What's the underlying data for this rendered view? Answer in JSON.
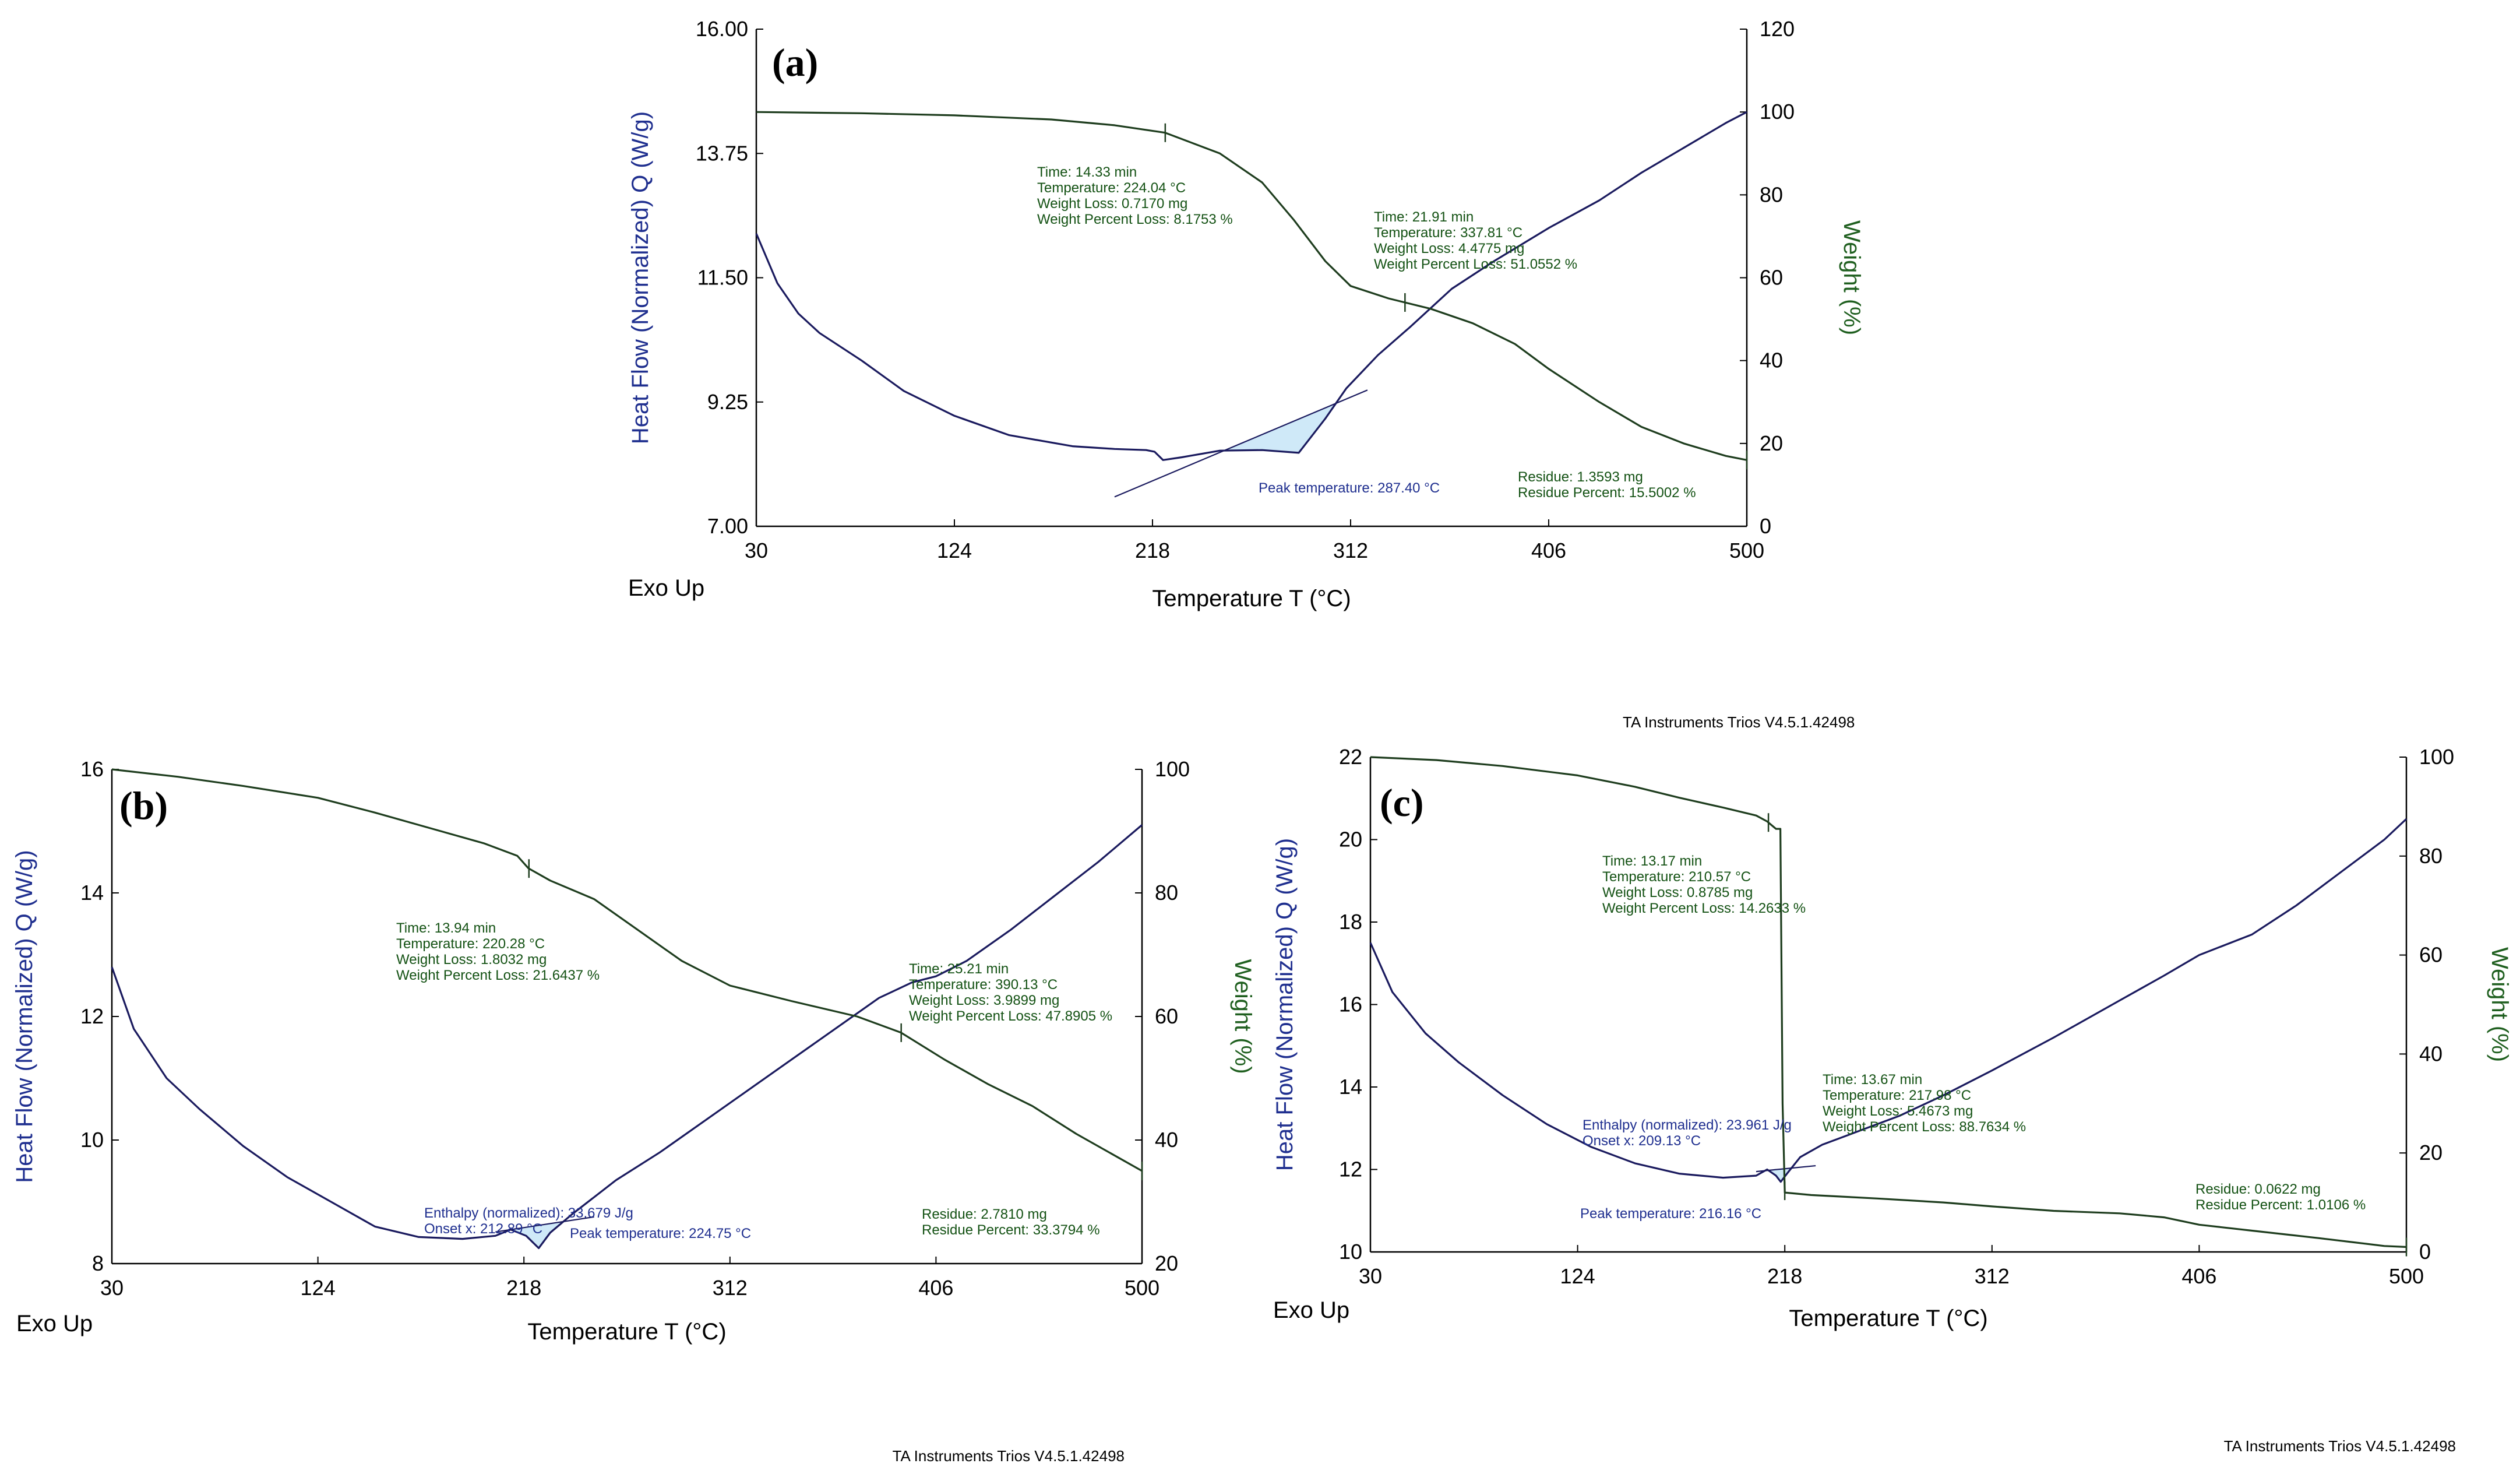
{
  "software": "TA Instruments Trios V4.5.1.42498",
  "colors": {
    "heat_flow": "#1a1a5e",
    "weight": "#1e3d1e",
    "heat_label": "#1f2f8f",
    "weight_label": "#1f5f1f",
    "weight_annotation": "#145214",
    "dsc_annotation": "#1f2f8f",
    "peak_fill": "#cfe9f8"
  },
  "chart_data": [
    {
      "type": "line",
      "panel": "(a)",
      "xlabel": "Temperature T (°C)",
      "ylabel_left": "Heat Flow (Normalized) Q (W/g)",
      "ylabel_right": "Weight (%)",
      "exo_label": "Exo Up",
      "footer": "",
      "xlim": [
        30,
        500
      ],
      "x_ticks": [
        "30",
        "124",
        "218",
        "312",
        "406",
        "500"
      ],
      "ylim_left": [
        7.0,
        16.0
      ],
      "y_ticks_left": [
        "7.00",
        "9.25",
        "11.50",
        "13.75",
        "16.00"
      ],
      "ylim_right": [
        0,
        120
      ],
      "y_ticks_right": [
        "0",
        "20",
        "40",
        "60",
        "80",
        "100",
        "120"
      ],
      "series": [
        {
          "name": "Heat Flow",
          "axis": "left",
          "color": "#1a1a5e",
          "points": [
            [
              30,
              12.3
            ],
            [
              40,
              11.4
            ],
            [
              50,
              10.85
            ],
            [
              60,
              10.5
            ],
            [
              80,
              10.0
            ],
            [
              100,
              9.45
            ],
            [
              124,
              9.0
            ],
            [
              150,
              8.65
            ],
            [
              180,
              8.45
            ],
            [
              200,
              8.4
            ],
            [
              215,
              8.38
            ],
            [
              219,
              8.35
            ],
            [
              223,
              8.2
            ],
            [
              232,
              8.25
            ],
            [
              250,
              8.37
            ],
            [
              270,
              8.38
            ],
            [
              287.4,
              8.33
            ],
            [
              300,
              8.95
            ],
            [
              310,
              9.5
            ],
            [
              325,
              10.1
            ],
            [
              340,
              10.6
            ],
            [
              360,
              11.3
            ],
            [
              380,
              11.8
            ],
            [
              406,
              12.4
            ],
            [
              430,
              12.9
            ],
            [
              450,
              13.4
            ],
            [
              470,
              13.85
            ],
            [
              490,
              14.3
            ],
            [
              500,
              14.5
            ]
          ]
        },
        {
          "name": "Weight",
          "axis": "right",
          "color": "#1e3d1e",
          "points": [
            [
              30,
              100
            ],
            [
              80,
              99.7
            ],
            [
              124,
              99.2
            ],
            [
              170,
              98.2
            ],
            [
              200,
              96.8
            ],
            [
              224,
              95
            ],
            [
              250,
              90
            ],
            [
              270,
              83
            ],
            [
              285,
              74
            ],
            [
              300,
              64
            ],
            [
              312,
              58
            ],
            [
              330,
              55
            ],
            [
              350,
              52.5
            ],
            [
              370,
              49
            ],
            [
              390,
              44
            ],
            [
              406,
              38
            ],
            [
              430,
              30
            ],
            [
              450,
              24
            ],
            [
              470,
              20
            ],
            [
              490,
              17
            ],
            [
              500,
              16
            ]
          ]
        }
      ],
      "annotations": [
        {
          "lines": [
            "Time: 14.33 min",
            "Temperature: 224.04 °C",
            "Weight Loss: 0.7170 mg",
            "Weight Percent Loss: 8.1753 %"
          ],
          "color": "weight"
        },
        {
          "lines": [
            "Time: 21.91 min",
            "Temperature: 337.81 °C",
            "Weight Loss: 4.4775 mg",
            "Weight Percent Loss: 51.0552 %"
          ],
          "color": "weight"
        },
        {
          "lines": [
            "Peak temperature: 287.40 °C"
          ],
          "color": "dsc"
        },
        {
          "lines": [
            "Residue: 1.3593 mg",
            "Residue Percent: 15.5002 %"
          ],
          "color": "weight"
        }
      ]
    },
    {
      "type": "line",
      "panel": "(b)",
      "xlabel": "Temperature T (°C)",
      "ylabel_left": "Heat Flow (Normalized)  Q  (W/g)",
      "ylabel_right": "Weight (%)",
      "exo_label": "Exo Up",
      "footer": "TA Instruments Trios V4.5.1.42498",
      "xlim": [
        30,
        500
      ],
      "x_ticks": [
        "30",
        "124",
        "218",
        "312",
        "406",
        "500"
      ],
      "ylim_left": [
        8,
        16
      ],
      "y_ticks_left": [
        "8",
        "10",
        "12",
        "14",
        "16"
      ],
      "ylim_right": [
        20,
        100
      ],
      "y_ticks_right": [
        "20",
        "40",
        "60",
        "80",
        "100"
      ],
      "series": [
        {
          "name": "Heat Flow",
          "axis": "left",
          "color": "#1a1a5e",
          "points": [
            [
              30,
              12.8
            ],
            [
              40,
              11.8
            ],
            [
              55,
              11.0
            ],
            [
              70,
              10.5
            ],
            [
              90,
              9.9
            ],
            [
              110,
              9.4
            ],
            [
              130,
              9.0
            ],
            [
              150,
              8.6
            ],
            [
              170,
              8.43
            ],
            [
              190,
              8.4
            ],
            [
              205,
              8.45
            ],
            [
              212,
              8.55
            ],
            [
              219,
              8.45
            ],
            [
              224.75,
              8.25
            ],
            [
              230,
              8.5
            ],
            [
              240,
              8.8
            ],
            [
              260,
              9.35
            ],
            [
              280,
              9.8
            ],
            [
              300,
              10.3
            ],
            [
              320,
              10.8
            ],
            [
              340,
              11.3
            ],
            [
              360,
              11.8
            ],
            [
              380,
              12.3
            ],
            [
              395,
              12.55
            ],
            [
              406,
              12.65
            ],
            [
              420,
              12.9
            ],
            [
              440,
              13.4
            ],
            [
              460,
              13.95
            ],
            [
              480,
              14.5
            ],
            [
              500,
              15.1
            ]
          ]
        },
        {
          "name": "Weight",
          "axis": "right",
          "color": "#1e3d1e",
          "points": [
            [
              30,
              100
            ],
            [
              60,
              98.8
            ],
            [
              90,
              97.3
            ],
            [
              124,
              95.4
            ],
            [
              150,
              93
            ],
            [
              180,
              90
            ],
            [
              200,
              88
            ],
            [
              215,
              86
            ],
            [
              220,
              84
            ],
            [
              230,
              82
            ],
            [
              250,
              79
            ],
            [
              270,
              74
            ],
            [
              290,
              69
            ],
            [
              312,
              65
            ],
            [
              340,
              62.5
            ],
            [
              370,
              60
            ],
            [
              390,
              57.4
            ],
            [
              410,
              53
            ],
            [
              430,
              49
            ],
            [
              450,
              45.5
            ],
            [
              470,
              41
            ],
            [
              490,
              37
            ],
            [
              500,
              35
            ]
          ]
        }
      ],
      "annotations": [
        {
          "lines": [
            "Time: 13.94 min",
            "Temperature: 220.28 °C",
            "Weight Loss: 1.8032 mg",
            "Weight Percent Loss: 21.6437 %"
          ],
          "color": "weight"
        },
        {
          "lines": [
            "Time: 25.21 min",
            "Temperature: 390.13 °C",
            "Weight Loss: 3.9899 mg",
            "Weight Percent Loss: 47.8905 %"
          ],
          "color": "weight"
        },
        {
          "lines": [
            "Enthalpy (normalized): 33.679 J/g",
            "Onset x: 212.89 °C"
          ],
          "color": "dsc"
        },
        {
          "lines": [
            "Peak temperature: 224.75 °C"
          ],
          "color": "dsc"
        },
        {
          "lines": [
            "Residue: 2.7810 mg",
            "Residue Percent: 33.3794 %"
          ],
          "color": "weight"
        }
      ]
    },
    {
      "type": "line",
      "panel": "(c)",
      "xlabel": "Temperature T (°C)",
      "ylabel_left": "Heat Flow (Normalized)  Q  (W/g)",
      "ylabel_right": "Weight (%)",
      "exo_label": "Exo Up",
      "footer": "TA Instruments Trios V4.5.1.42498",
      "header": "TA Instruments Trios V4.5.1.42498",
      "xlim": [
        30,
        500
      ],
      "x_ticks": [
        "30",
        "124",
        "218",
        "312",
        "406",
        "500"
      ],
      "ylim_left": [
        10,
        22
      ],
      "y_ticks_left": [
        "10",
        "12",
        "14",
        "16",
        "18",
        "20",
        "22"
      ],
      "ylim_right": [
        0,
        100
      ],
      "y_ticks_right": [
        "0",
        "20",
        "40",
        "60",
        "80",
        "100"
      ],
      "series": [
        {
          "name": "Heat Flow",
          "axis": "left",
          "color": "#1a1a5e",
          "points": [
            [
              30,
              17.5
            ],
            [
              40,
              16.3
            ],
            [
              55,
              15.3
            ],
            [
              70,
              14.6
            ],
            [
              90,
              13.8
            ],
            [
              110,
              13.1
            ],
            [
              130,
              12.55
            ],
            [
              150,
              12.15
            ],
            [
              170,
              11.9
            ],
            [
              190,
              11.8
            ],
            [
              205,
              11.85
            ],
            [
              210,
              12.0
            ],
            [
              214,
              11.85
            ],
            [
              216.16,
              11.7
            ],
            [
              219,
              11.9
            ],
            [
              225,
              12.3
            ],
            [
              235,
              12.6
            ],
            [
              250,
              12.9
            ],
            [
              270,
              13.3
            ],
            [
              290,
              13.8
            ],
            [
              312,
              14.4
            ],
            [
              340,
              15.2
            ],
            [
              370,
              16.1
            ],
            [
              390,
              16.7
            ],
            [
              406,
              17.2
            ],
            [
              430,
              17.7
            ],
            [
              450,
              18.4
            ],
            [
              470,
              19.2
            ],
            [
              490,
              20.0
            ],
            [
              500,
              20.5
            ]
          ]
        },
        {
          "name": "Weight",
          "axis": "right",
          "color": "#1e3d1e",
          "points": [
            [
              30,
              100
            ],
            [
              60,
              99.4
            ],
            [
              90,
              98.2
            ],
            [
              124,
              96.3
            ],
            [
              150,
              94
            ],
            [
              170,
              91.8
            ],
            [
              190,
              89.8
            ],
            [
              205,
              88.2
            ],
            [
              210,
              87
            ],
            [
              214,
              85.5
            ],
            [
              216,
              85.5
            ],
            [
              217,
              30
            ],
            [
              218,
              12
            ],
            [
              230,
              11.5
            ],
            [
              260,
              10.8
            ],
            [
              290,
              10
            ],
            [
              312,
              9.2
            ],
            [
              340,
              8.3
            ],
            [
              370,
              7.8
            ],
            [
              390,
              7.0
            ],
            [
              406,
              5.5
            ],
            [
              430,
              4.3
            ],
            [
              460,
              2.8
            ],
            [
              490,
              1.2
            ],
            [
              500,
              1.0
            ]
          ]
        }
      ],
      "annotations": [
        {
          "lines": [
            "Time: 13.17 min",
            "Temperature: 210.57 °C",
            "Weight Loss: 0.8785 mg",
            "Weight Percent Loss: 14.2633 %"
          ],
          "color": "weight"
        },
        {
          "lines": [
            "Enthalpy (normalized): 23.961 J/g",
            "Onset x: 209.13 °C"
          ],
          "color": "dsc"
        },
        {
          "lines": [
            "Time: 13.67 min",
            "Temperature: 217.98 °C",
            "Weight Loss: 5.4673 mg",
            "Weight Percent Loss: 88.7634 %"
          ],
          "color": "weight"
        },
        {
          "lines": [
            "Peak temperature: 216.16 °C"
          ],
          "color": "dsc"
        },
        {
          "lines": [
            "Residue: 0.0622 mg",
            "Residue Percent: 1.0106 %"
          ],
          "color": "weight"
        }
      ]
    }
  ]
}
